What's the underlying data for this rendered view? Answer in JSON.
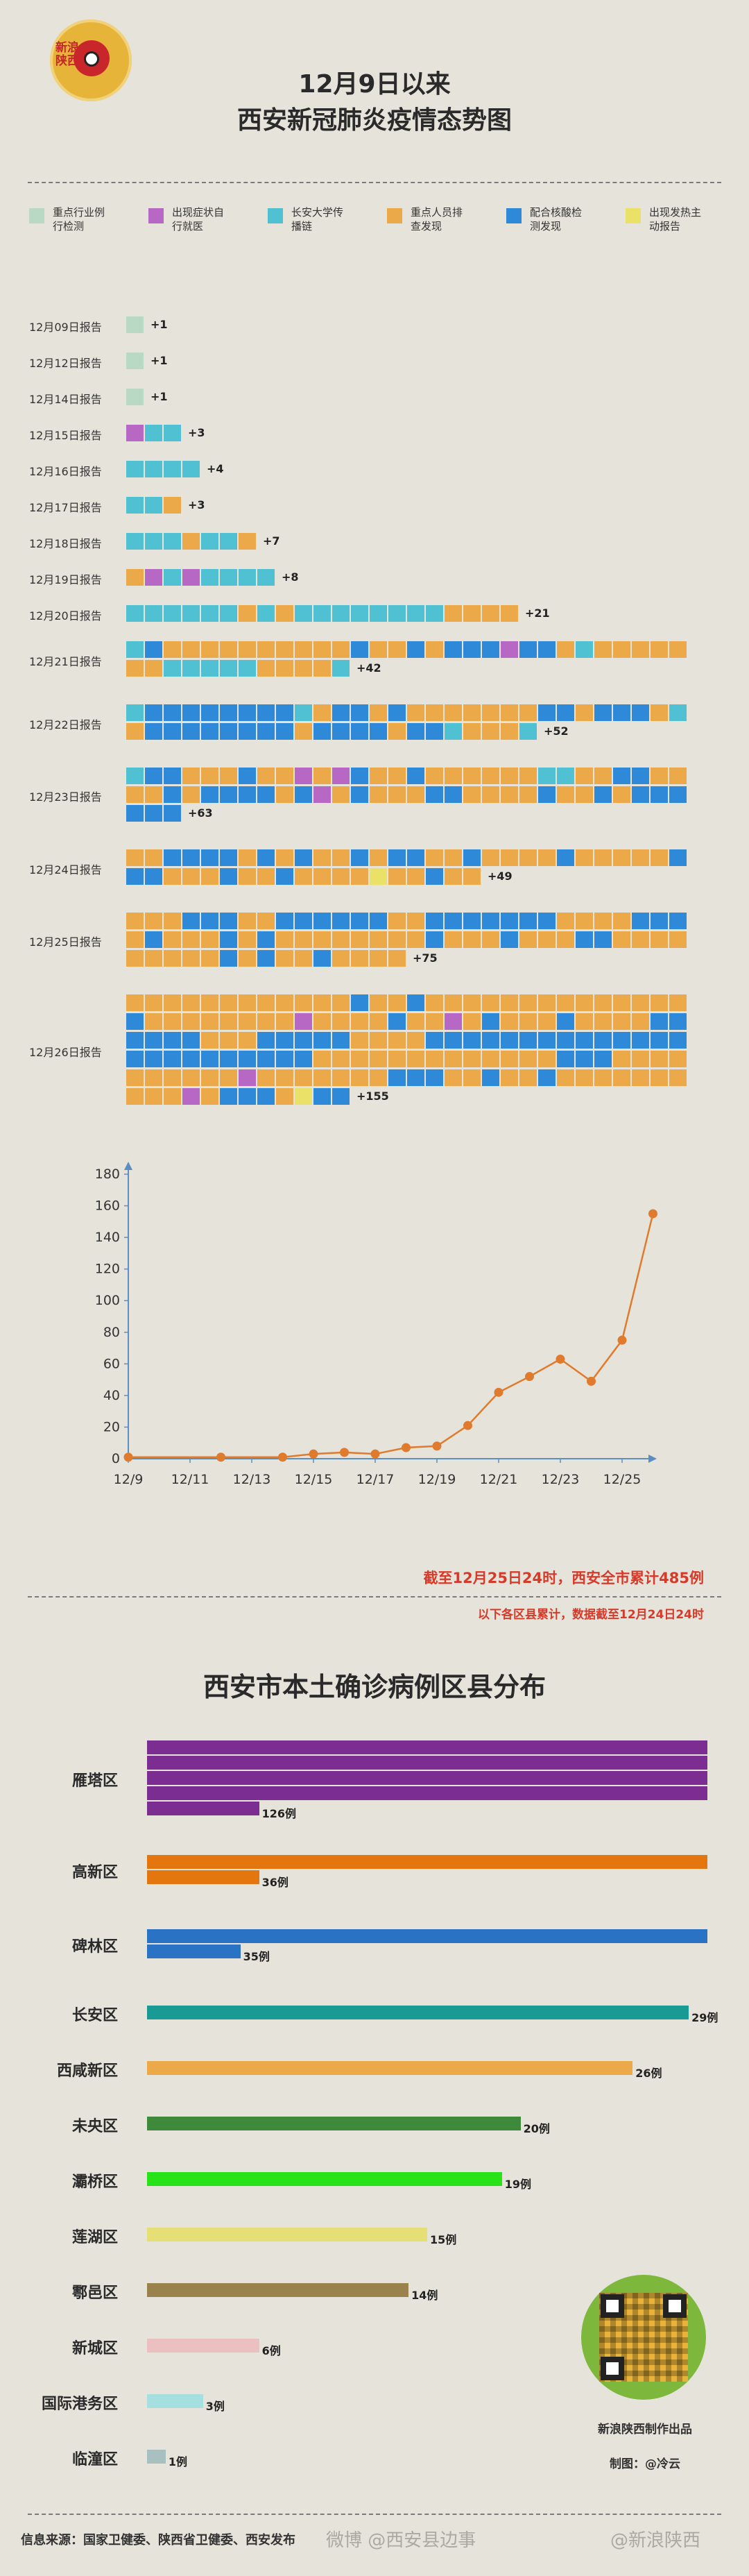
{
  "logo": {
    "text": "新浪陕西"
  },
  "title": {
    "line1": "12月9日以来",
    "line2": "西安新冠肺炎疫情态势图"
  },
  "legend": [
    {
      "key": "A",
      "label": "重点行业例行检测",
      "color": "#b9d9c4"
    },
    {
      "key": "B",
      "label": "出现症状自行就医",
      "color": "#b768c4"
    },
    {
      "key": "C",
      "label": "长安大学传播链",
      "color": "#4fc1d3"
    },
    {
      "key": "D",
      "label": "重点人员排查发现",
      "color": "#eca94a"
    },
    {
      "key": "E",
      "label": "配合核酸检测发现",
      "color": "#2e8ad8"
    },
    {
      "key": "F",
      "label": "出现发热主动报告",
      "color": "#e9e168"
    }
  ],
  "chart_data": [
    {
      "type": "waffle",
      "title": "12月9日以来西安新冠肺炎疫情态势图",
      "rows": [
        {
          "label": "12月09日报告",
          "count": "+1",
          "cells": "A"
        },
        {
          "label": "12月12日报告",
          "count": "+1",
          "cells": "A"
        },
        {
          "label": "12月14日报告",
          "count": "+1",
          "cells": "A"
        },
        {
          "label": "12月15日报告",
          "count": "+3",
          "cells": "BCC"
        },
        {
          "label": "12月16日报告",
          "count": "+4",
          "cells": "CCCC"
        },
        {
          "label": "12月17日报告",
          "count": "+3",
          "cells": "CCD"
        },
        {
          "label": "12月18日报告",
          "count": "+7",
          "cells": "CCCDCCD"
        },
        {
          "label": "12月19日报告",
          "count": "+8",
          "cells": "DBCBCCCC"
        },
        {
          "label": "12月20日报告",
          "count": "+21",
          "cells": "CCCCCCDCDCCCCCCCCDDDD"
        },
        {
          "label": "12月21日报告",
          "count": "+42",
          "cells": "CEDDDDDDDDDDEDDEDEEEBEEDCDDDDDDDCCCCCDDDDC"
        },
        {
          "label": "12月22日报告",
          "count": "+52",
          "cells": "CEEEEEEEECDEEDEDDDDDDDEEDEEEDCDEEEEEEEEDEEEEDEECDDDC"
        },
        {
          "label": "12月23日报告",
          "count": "+63",
          "cells": "CEEDDDEDDBDBEDDEDDDDDDCCDDEEDDDDEDEEEEDEBDEDDDEEDDDDEDDEDEEEEEE"
        },
        {
          "label": "12月24日报告",
          "count": "+49",
          "cells": "DDEEEEDEDEDDEDEEDDEDDDDEDDDDDEEEDDDEDDEDDDDFDDEDD"
        },
        {
          "label": "12月25日报告",
          "count": "+75",
          "cells": "DDDEEEDDEEEEEEDDEEEEEEEDDDDEEEDEDDDEDEDDDDDDDDEDDDEDDDEEDDDDDDDDDEDEDDEDDDD"
        },
        {
          "label": "12月26日报告",
          "count": "+155",
          "cells": "DDDDDDDDDDDDEDDEDDDDDDDDDDDDDDEDDDDDDDDBDDDDEDDBDEDDDEDDDDEEEEEEDDDEEEEEDDDDEEEEEEEEEEEEEEEEEEEEEEEEDDDDDDDDDDDDDEEEDDDDDDDDDDBDDDDDDDEEEDDEDDEDDDDDDDDDDBDEEEDFEE"
        }
      ]
    },
    {
      "type": "line",
      "title": "",
      "xlabel": "",
      "ylabel": "",
      "x": [
        "12/9",
        "12/12",
        "12/14",
        "12/15",
        "12/16",
        "12/17",
        "12/18",
        "12/19",
        "12/20",
        "12/21",
        "12/22",
        "12/23",
        "12/24",
        "12/25",
        "12/26"
      ],
      "y": [
        1,
        1,
        1,
        3,
        4,
        3,
        7,
        8,
        21,
        42,
        52,
        63,
        49,
        75,
        155
      ],
      "xtick_labels": [
        "12/9",
        "12/11",
        "12/13",
        "12/15",
        "12/17",
        "12/19",
        "12/21",
        "12/23",
        "12/25"
      ],
      "yticks": [
        0,
        20,
        40,
        60,
        80,
        100,
        120,
        140,
        160,
        180
      ],
      "ylim": [
        0,
        180
      ]
    },
    {
      "type": "bar",
      "orientation": "horizontal",
      "title": "西安市本土确诊病例区县分布",
      "categories": [
        "雁塔区",
        "高新区",
        "碑林区",
        "长安区",
        "西咸新区",
        "未央区",
        "灞桥区",
        "莲湖区",
        "鄠邑区",
        "新城区",
        "国际港务区",
        "临潼区"
      ],
      "values": [
        126,
        36,
        35,
        29,
        26,
        20,
        19,
        15,
        14,
        6,
        3,
        1
      ],
      "value_labels": [
        "126例",
        "36例",
        "35例",
        "29例",
        "26例",
        "20例",
        "19例",
        "15例",
        "14例",
        "6例",
        "3例",
        "1例"
      ],
      "colors": [
        "#7b2d91",
        "#e3760f",
        "#2a73c4",
        "#1a9a95",
        "#eca94a",
        "#3f8a3a",
        "#27e317",
        "#e6df76",
        "#99824b",
        "#ecbfc1",
        "#a6dfdf",
        "#a8c0c0"
      ],
      "wrap_at": 30
    }
  ],
  "notes": {
    "total": "截至12月25日24时，西安全市累计485例",
    "district": "以下各区县累计，数据截至12月24日24时"
  },
  "footer": {
    "producer": "新浪陕西制作出品",
    "author": "制图：@冷云",
    "source": "信息来源：国家卫健委、陕西省卫健委、西安发布",
    "watermark1": "微博 @西安县边事",
    "watermark2": "@新浪陕西"
  }
}
